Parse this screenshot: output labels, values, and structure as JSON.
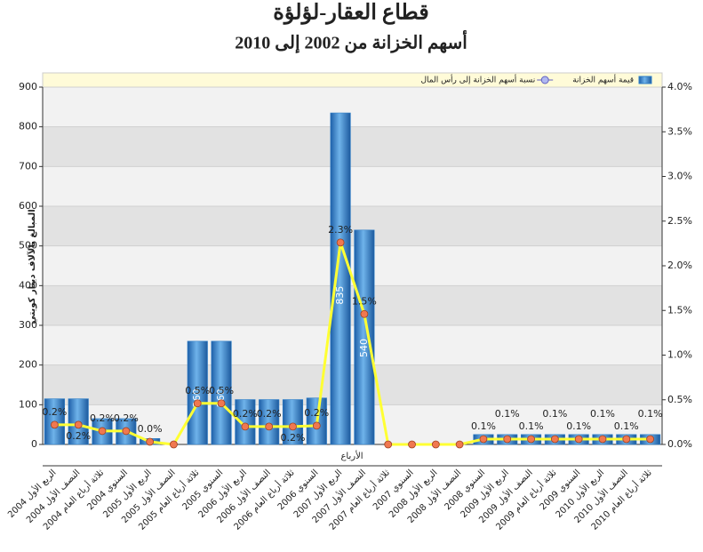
{
  "chart_data": {
    "type": "bar_line",
    "title": "قطاع العقار-لؤلؤة",
    "subtitle": "أسهم الخزانة من 2002 إلى 2010",
    "x_label": "الأرباع",
    "y_label": "المبالغ بالآلاف دينار كويتي",
    "categories": [
      "الربع الأول 2004",
      "النصف الأول 2004",
      "ثلاثة أرباع العام 2004",
      "السنوي 2004",
      "الربع الأول 2005",
      "النصف الأول 2005",
      "ثلاثة أرباع العام 2005",
      "السنوي 2005",
      "الربع الأول 2006",
      "النصف الأول 2006",
      "ثلاثة أرباع العام 2006",
      "السنوي 2006",
      "الربع الأول 2007",
      "النصف الأول 2007",
      "ثلاثة أرباع العام 2007",
      "السنوي 2007",
      "الربع الأول 2008",
      "النصف الأول 2008",
      "السنوي 2008",
      "الربع الأول 2009",
      "النصف الأول 2009",
      "ثلاثة أرباع العام 2009",
      "السنوي 2009",
      "الربع الأول 2010",
      "النصف الأول 2010",
      "ثلاثة أرباع العام 2010"
    ],
    "series": [
      {
        "name": "قيمة أسهم الخزانة",
        "type": "bar",
        "color": "#2f7fc8",
        "values": [
          115,
          115,
          65,
          65,
          15,
          0,
          260,
          260,
          113,
          113,
          113,
          117,
          835,
          540,
          0,
          0,
          0,
          0,
          25,
          25,
          25,
          25,
          25,
          25,
          25,
          25
        ],
        "value_labels": [
          null,
          null,
          null,
          null,
          null,
          null,
          "260",
          "260",
          null,
          null,
          null,
          null,
          "835",
          "540",
          null,
          null,
          null,
          null,
          null,
          null,
          null,
          null,
          null,
          null,
          null,
          null
        ]
      },
      {
        "name": "نسبة أسهم الخزانة إلى رأس المال",
        "type": "line",
        "axis": "y2",
        "color": "#ffff33",
        "marker_color": "#f07850",
        "values": [
          0.22,
          0.22,
          0.15,
          0.15,
          0.03,
          0,
          0.46,
          0.46,
          0.2,
          0.2,
          0.2,
          0.21,
          2.26,
          1.46,
          0,
          0,
          0,
          0,
          0.06,
          0.06,
          0.06,
          0.06,
          0.06,
          0.06,
          0.06,
          0.06
        ],
        "value_labels": [
          "0.2%",
          "0.2%",
          "0.2%",
          "0.2%",
          "0.0%",
          null,
          "0.5%",
          "0.5%",
          "0.2%",
          "0.2%",
          "0.2%",
          "0.2%",
          "2.3%",
          "1.5%",
          null,
          null,
          null,
          null,
          "0.1%",
          "0.1%",
          "0.1%",
          "0.1%",
          "0.1%",
          "0.1%",
          "0.1%",
          "0.1%"
        ]
      }
    ],
    "ylim": [
      0,
      900
    ],
    "yticks": [
      0,
      100,
      200,
      300,
      400,
      500,
      600,
      700,
      800,
      900
    ],
    "y2lim": [
      0,
      4
    ],
    "y2ticks": [
      {
        "value": 0,
        "label": "0.0%"
      },
      {
        "value": 0.5,
        "label": "0.5%"
      },
      {
        "value": 1,
        "label": "1.0%"
      },
      {
        "value": 1.5,
        "label": "1.5%"
      },
      {
        "value": 2,
        "label": "2.0%"
      },
      {
        "value": 2.5,
        "label": "2.5%"
      },
      {
        "value": 3,
        "label": "3.0%"
      },
      {
        "value": 3.5,
        "label": "3.5%"
      },
      {
        "value": 4,
        "label": "4.0%"
      }
    ],
    "grid": true
  }
}
